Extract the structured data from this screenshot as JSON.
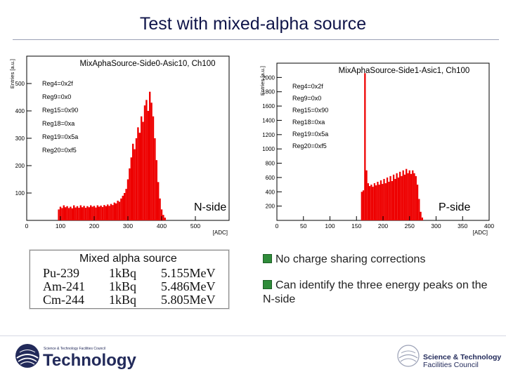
{
  "slide": {
    "title": "Test with mixed-alpha source"
  },
  "chart_data": [
    {
      "type": "bar",
      "title": "MixAphaSource-Side0-Asic10, Ch100",
      "ylabel": "Entries [a.u.]",
      "xlabel": "[ADC]",
      "xlim": [
        0,
        600
      ],
      "ylim": [
        0,
        600
      ],
      "x_ticks": [
        "0",
        "100",
        "200",
        "300",
        "400",
        "500"
      ],
      "y_ticks": [
        "100",
        "200",
        "300",
        "400",
        "500"
      ],
      "y_tick_values": [
        100,
        200,
        300,
        400,
        500
      ],
      "bins": [
        {
          "x": 95,
          "y": 40
        },
        {
          "x": 100,
          "y": 50
        },
        {
          "x": 105,
          "y": 45
        },
        {
          "x": 110,
          "y": 55
        },
        {
          "x": 115,
          "y": 48
        },
        {
          "x": 120,
          "y": 52
        },
        {
          "x": 125,
          "y": 45
        },
        {
          "x": 130,
          "y": 50
        },
        {
          "x": 135,
          "y": 44
        },
        {
          "x": 140,
          "y": 55
        },
        {
          "x": 145,
          "y": 47
        },
        {
          "x": 150,
          "y": 52
        },
        {
          "x": 155,
          "y": 46
        },
        {
          "x": 160,
          "y": 55
        },
        {
          "x": 165,
          "y": 48
        },
        {
          "x": 170,
          "y": 53
        },
        {
          "x": 175,
          "y": 46
        },
        {
          "x": 180,
          "y": 52
        },
        {
          "x": 185,
          "y": 48
        },
        {
          "x": 190,
          "y": 55
        },
        {
          "x": 195,
          "y": 50
        },
        {
          "x": 200,
          "y": 53
        },
        {
          "x": 205,
          "y": 47
        },
        {
          "x": 210,
          "y": 55
        },
        {
          "x": 215,
          "y": 50
        },
        {
          "x": 220,
          "y": 54
        },
        {
          "x": 225,
          "y": 49
        },
        {
          "x": 230,
          "y": 56
        },
        {
          "x": 235,
          "y": 52
        },
        {
          "x": 240,
          "y": 58
        },
        {
          "x": 245,
          "y": 53
        },
        {
          "x": 250,
          "y": 60
        },
        {
          "x": 255,
          "y": 56
        },
        {
          "x": 260,
          "y": 65
        },
        {
          "x": 265,
          "y": 62
        },
        {
          "x": 270,
          "y": 72
        },
        {
          "x": 275,
          "y": 68
        },
        {
          "x": 280,
          "y": 80
        },
        {
          "x": 285,
          "y": 90
        },
        {
          "x": 290,
          "y": 100
        },
        {
          "x": 295,
          "y": 115
        },
        {
          "x": 300,
          "y": 150
        },
        {
          "x": 305,
          "y": 190
        },
        {
          "x": 310,
          "y": 230
        },
        {
          "x": 315,
          "y": 280
        },
        {
          "x": 320,
          "y": 260
        },
        {
          "x": 325,
          "y": 300
        },
        {
          "x": 330,
          "y": 340
        },
        {
          "x": 335,
          "y": 320
        },
        {
          "x": 340,
          "y": 380
        },
        {
          "x": 345,
          "y": 360
        },
        {
          "x": 350,
          "y": 420
        },
        {
          "x": 355,
          "y": 440
        },
        {
          "x": 360,
          "y": 400
        },
        {
          "x": 365,
          "y": 470
        },
        {
          "x": 370,
          "y": 430
        },
        {
          "x": 375,
          "y": 380
        },
        {
          "x": 380,
          "y": 300
        },
        {
          "x": 385,
          "y": 220
        },
        {
          "x": 390,
          "y": 140
        },
        {
          "x": 395,
          "y": 80
        },
        {
          "x": 400,
          "y": 40
        },
        {
          "x": 405,
          "y": 20
        },
        {
          "x": 410,
          "y": 10
        }
      ],
      "legend": [
        "Reg4=0x2f",
        "Reg9=0x0",
        "Reg15=0x90",
        "Reg18=0xa",
        "Reg19=0x5a",
        "Reg20=0xf5"
      ]
    },
    {
      "type": "bar",
      "title": "MixAphaSource-Side1-Asic1, Ch100",
      "ylabel": "Entries [a.u.]",
      "xlabel": "[ADC]",
      "xlim": [
        0,
        400
      ],
      "ylim": [
        0,
        2200
      ],
      "x_ticks": [
        "0",
        "50",
        "100",
        "150",
        "200",
        "250",
        "300",
        "350",
        "400"
      ],
      "y_ticks": [
        "200",
        "400",
        "600",
        "800",
        "1000",
        "1200",
        "1400",
        "1600",
        "1800",
        "2000"
      ],
      "y_tick_values": [
        200,
        400,
        600,
        800,
        1000,
        1200,
        1400,
        1600,
        1800,
        2000
      ],
      "bins": [
        {
          "x": 160,
          "y": 400
        },
        {
          "x": 163,
          "y": 420
        },
        {
          "x": 166,
          "y": 2060
        },
        {
          "x": 169,
          "y": 700
        },
        {
          "x": 172,
          "y": 520
        },
        {
          "x": 175,
          "y": 480
        },
        {
          "x": 178,
          "y": 500
        },
        {
          "x": 181,
          "y": 470
        },
        {
          "x": 184,
          "y": 520
        },
        {
          "x": 187,
          "y": 490
        },
        {
          "x": 190,
          "y": 540
        },
        {
          "x": 193,
          "y": 500
        },
        {
          "x": 196,
          "y": 560
        },
        {
          "x": 199,
          "y": 510
        },
        {
          "x": 202,
          "y": 580
        },
        {
          "x": 205,
          "y": 520
        },
        {
          "x": 208,
          "y": 600
        },
        {
          "x": 211,
          "y": 540
        },
        {
          "x": 214,
          "y": 620
        },
        {
          "x": 217,
          "y": 550
        },
        {
          "x": 220,
          "y": 640
        },
        {
          "x": 223,
          "y": 580
        },
        {
          "x": 226,
          "y": 660
        },
        {
          "x": 229,
          "y": 600
        },
        {
          "x": 232,
          "y": 680
        },
        {
          "x": 235,
          "y": 620
        },
        {
          "x": 238,
          "y": 700
        },
        {
          "x": 241,
          "y": 640
        },
        {
          "x": 244,
          "y": 720
        },
        {
          "x": 247,
          "y": 660
        },
        {
          "x": 250,
          "y": 700
        },
        {
          "x": 253,
          "y": 650
        },
        {
          "x": 256,
          "y": 700
        },
        {
          "x": 259,
          "y": 660
        },
        {
          "x": 262,
          "y": 620
        },
        {
          "x": 265,
          "y": 500
        },
        {
          "x": 268,
          "y": 300
        },
        {
          "x": 271,
          "y": 120
        },
        {
          "x": 274,
          "y": 40
        }
      ],
      "legend": [
        "Reg4=0x2f",
        "Reg9=0x0",
        "Reg15=0x90",
        "Reg18=0xa",
        "Reg19=0x5a",
        "Reg20=0xf5"
      ]
    }
  ],
  "labels": {
    "n_side": "N-side",
    "p_side": "P-side"
  },
  "sources": {
    "heading": "Mixed alpha source",
    "rows": [
      {
        "isotope": "Pu-239",
        "activity": "1kBq",
        "energy": "5.155MeV"
      },
      {
        "isotope": "Am-241",
        "activity": "1kBq",
        "energy": "5.486MeV"
      },
      {
        "isotope": "Cm-244",
        "activity": "1kBq",
        "energy": "5.805MeV"
      }
    ]
  },
  "bullets": [
    "No charge sharing corrections",
    "Can identify the three energy peaks on the N-side"
  ],
  "footer": {
    "left_small": "Science & Technology Facilities Council",
    "left_big": "Technology",
    "right_line1": "Science & Technology",
    "right_line2": "Facilities Council"
  },
  "colors": {
    "bars": "#ee0000",
    "title": "#10154a",
    "logo": "#222a5a"
  }
}
